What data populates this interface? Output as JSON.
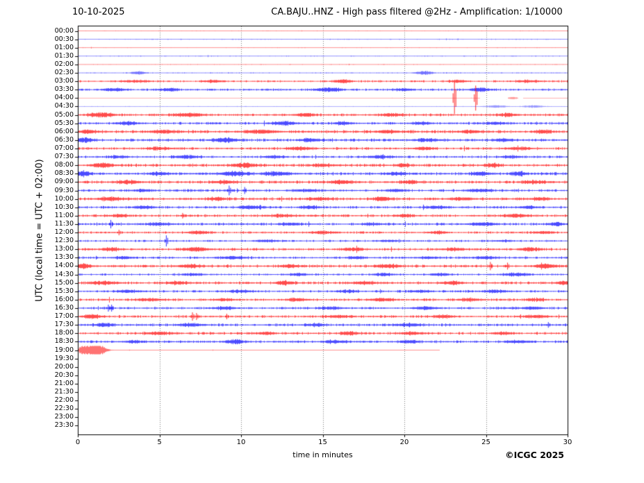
{
  "header": {
    "date": "10-10-2025",
    "title": "CA.BAJU..HNZ - High pass filtered @2Hz - Amplification: 1/10000"
  },
  "footer": {
    "xlabel": "time in minutes",
    "copyright": "©ICGC 2025"
  },
  "chart_data": {
    "type": "line",
    "kind": "helicorder-dayplot",
    "station": "CA.BAJU..HNZ",
    "filter": "High pass filtered @2Hz",
    "amplification": "1/10000",
    "date": "10-10-2025",
    "ylabel": "UTC (local time = UTC + 02:00)",
    "xlabel": "time in minutes",
    "xlim": [
      0,
      30
    ],
    "x_ticks": [
      0,
      5,
      10,
      15,
      20,
      25,
      30
    ],
    "grid_minutes": [
      5,
      10,
      15,
      20,
      25
    ],
    "grid": "dotted-vertical",
    "colors": {
      "red": "#ff0000",
      "blue": "#0000ff",
      "grid": "#777777",
      "axis": "#000000",
      "text": "#000000"
    },
    "minutes_per_row": 30,
    "last_trace_row": "19:00",
    "last_trace_end_minute": 22.15,
    "rows": [
      {
        "label": "00:00",
        "color": "red",
        "amp": 0.35,
        "bursts": []
      },
      {
        "label": "00:30",
        "color": "blue",
        "amp": 0.45,
        "bursts": []
      },
      {
        "label": "01:00",
        "color": "red",
        "amp": 0.35,
        "bursts": []
      },
      {
        "label": "01:30",
        "color": "blue",
        "amp": 0.5,
        "bursts": []
      },
      {
        "label": "02:00",
        "color": "red",
        "amp": 0.4,
        "bursts": []
      },
      {
        "label": "02:30",
        "color": "blue",
        "amp": 0.55,
        "bursts": [
          [
            3.7,
            0.3,
            1.2
          ],
          [
            21.2,
            0.35,
            1.5
          ]
        ]
      },
      {
        "label": "03:00",
        "color": "red",
        "amp": 1.0,
        "bursts": [
          [
            3.5,
            0.6,
            0.7
          ],
          [
            8.2,
            0.4,
            0.9
          ],
          [
            16.2,
            0.35,
            1.3
          ],
          [
            23.3,
            0.4,
            0.8
          ],
          [
            27.5,
            0.5,
            0.7
          ]
        ]
      },
      {
        "label": "03:30",
        "color": "blue",
        "amp": 1.1,
        "bursts": [
          [
            2.2,
            0.5,
            0.9
          ],
          [
            5.6,
            0.3,
            1.2
          ],
          [
            15.3,
            0.5,
            1.5
          ],
          [
            20.0,
            0.4,
            0.8
          ],
          [
            24.6,
            0.4,
            1.3
          ]
        ]
      },
      {
        "label": "04:00",
        "color": "red",
        "amp": 0.28,
        "faint": true,
        "spikes": [
          [
            23.05,
            23
          ],
          [
            24.35,
            18
          ]
        ],
        "gaps": [
          [
            24.6,
            26.3
          ],
          [
            26.95,
            27.25
          ]
        ],
        "bursts": [
          [
            26.6,
            0.22,
            0.9
          ]
        ]
      },
      {
        "label": "04:30",
        "color": "blue",
        "amp": 0.4,
        "faint": true,
        "bursts": [
          [
            25.6,
            0.5,
            0.9
          ],
          [
            27.9,
            0.4,
            1.0
          ]
        ]
      },
      {
        "label": "05:00",
        "color": "red",
        "amp": 1.3,
        "bursts": [
          [
            1.4,
            0.5,
            1.5
          ],
          [
            6.8,
            0.6,
            1.3
          ],
          [
            13.9,
            0.4,
            1.1
          ],
          [
            19.2,
            0.5,
            0.9
          ],
          [
            26.3,
            0.4,
            1.0
          ]
        ]
      },
      {
        "label": "05:30",
        "color": "blue",
        "amp": 1.2,
        "bursts": [
          [
            3.1,
            0.4,
            1.1
          ],
          [
            12.6,
            0.5,
            1.3
          ],
          [
            16.2,
            0.3,
            1.0
          ],
          [
            21.0,
            0.4,
            0.8
          ],
          [
            25.5,
            0.4,
            0.9
          ]
        ]
      },
      {
        "label": "06:00",
        "color": "red",
        "amp": 1.5,
        "bursts": [
          [
            0.6,
            0.4,
            1.2
          ],
          [
            5.3,
            0.5,
            1.0
          ],
          [
            11.2,
            0.6,
            1.4
          ],
          [
            19.0,
            0.4,
            1.1
          ],
          [
            24.0,
            0.5,
            0.9
          ],
          [
            28.5,
            0.4,
            1.0
          ]
        ]
      },
      {
        "label": "06:30",
        "color": "blue",
        "amp": 1.4,
        "bursts": [
          [
            0.4,
            0.4,
            1.5
          ],
          [
            9.0,
            0.5,
            1.6
          ],
          [
            14.2,
            0.4,
            1.1
          ],
          [
            21.5,
            0.5,
            0.9
          ],
          [
            26.0,
            0.4,
            0.8
          ]
        ]
      },
      {
        "label": "07:00",
        "color": "red",
        "amp": 1.25,
        "bursts": [
          [
            5.0,
            0.5,
            0.9
          ],
          [
            13.6,
            0.5,
            1.2
          ],
          [
            21.2,
            0.4,
            1.0
          ],
          [
            27.0,
            0.5,
            0.8
          ]
        ]
      },
      {
        "label": "07:30",
        "color": "blue",
        "amp": 1.2,
        "bursts": [
          [
            2.5,
            0.4,
            0.8
          ],
          [
            6.6,
            0.5,
            1.1
          ],
          [
            12.0,
            0.4,
            0.9
          ],
          [
            18.5,
            0.5,
            1.0
          ],
          [
            26.5,
            0.4,
            0.8
          ]
        ]
      },
      {
        "label": "08:00",
        "color": "red",
        "amp": 1.5,
        "bursts": [
          [
            1.5,
            0.4,
            1.7
          ],
          [
            10.1,
            0.5,
            1.4
          ],
          [
            15.0,
            0.4,
            0.9
          ],
          [
            19.9,
            0.25,
            1.5
          ],
          [
            25.4,
            0.3,
            1.3
          ]
        ]
      },
      {
        "label": "08:30",
        "color": "blue",
        "amp": 1.5,
        "bursts": [
          [
            0.3,
            0.3,
            1.9
          ],
          [
            5.0,
            0.4,
            0.9
          ],
          [
            9.6,
            0.6,
            1.4
          ],
          [
            12.2,
            0.5,
            1.3
          ],
          [
            19.5,
            0.4,
            0.9
          ],
          [
            24.6,
            0.4,
            1.1
          ],
          [
            27.0,
            0.3,
            1.4
          ]
        ]
      },
      {
        "label": "09:00",
        "color": "red",
        "amp": 1.4,
        "bursts": [
          [
            3.1,
            0.5,
            1.1
          ],
          [
            9.0,
            0.4,
            1.0
          ],
          [
            16.1,
            0.5,
            1.2
          ],
          [
            20.3,
            0.4,
            1.1
          ],
          [
            28.0,
            0.5,
            0.9
          ]
        ]
      },
      {
        "label": "09:30",
        "color": "blue",
        "amp": 1.25,
        "spikes": [
          [
            9.25,
            7
          ],
          [
            10.2,
            5
          ]
        ],
        "bursts": [
          [
            4.0,
            0.4,
            0.8
          ],
          [
            14.0,
            0.5,
            0.9
          ],
          [
            19.5,
            0.4,
            0.8
          ],
          [
            24.6,
            0.5,
            1.1
          ]
        ]
      },
      {
        "label": "10:00",
        "color": "red",
        "amp": 1.4,
        "bursts": [
          [
            2.0,
            0.5,
            1.2
          ],
          [
            8.5,
            0.4,
            1.0
          ],
          [
            14.8,
            0.5,
            0.9
          ],
          [
            18.6,
            0.4,
            1.3
          ],
          [
            23.5,
            0.5,
            0.9
          ],
          [
            28.3,
            0.4,
            0.9
          ]
        ]
      },
      {
        "label": "10:30",
        "color": "blue",
        "amp": 1.2,
        "bursts": [
          [
            4.0,
            0.4,
            0.9
          ],
          [
            10.6,
            0.5,
            1.1
          ],
          [
            14.2,
            0.4,
            1.0
          ],
          [
            22.0,
            0.5,
            0.8
          ],
          [
            27.5,
            0.4,
            0.8
          ]
        ]
      },
      {
        "label": "11:00",
        "color": "red",
        "amp": 1.25,
        "spikes": [
          [
            6.4,
            4
          ]
        ],
        "bursts": [
          [
            2.5,
            0.4,
            1.0
          ],
          [
            12.5,
            0.5,
            0.9
          ],
          [
            20.0,
            0.4,
            0.9
          ],
          [
            26.8,
            0.5,
            1.1
          ]
        ]
      },
      {
        "label": "11:30",
        "color": "blue",
        "amp": 1.25,
        "spikes": [
          [
            2.0,
            6
          ]
        ],
        "bursts": [
          [
            5.0,
            0.5,
            0.9
          ],
          [
            13.0,
            0.4,
            0.9
          ],
          [
            18.0,
            0.4,
            0.8
          ],
          [
            24.8,
            0.5,
            1.2
          ],
          [
            29.3,
            0.3,
            1.3
          ]
        ]
      },
      {
        "label": "12:00",
        "color": "red",
        "amp": 1.15,
        "spikes": [
          [
            2.5,
            4
          ]
        ],
        "bursts": [
          [
            7.4,
            0.4,
            1.2
          ],
          [
            15.0,
            0.5,
            0.9
          ],
          [
            22.0,
            0.4,
            0.8
          ],
          [
            28.5,
            0.4,
            0.9
          ]
        ]
      },
      {
        "label": "12:30",
        "color": "blue",
        "amp": 0.95,
        "spikes": [
          [
            5.4,
            8
          ]
        ],
        "bursts": [
          [
            11.5,
            0.5,
            0.7
          ],
          [
            19.0,
            0.4,
            0.7
          ],
          [
            26.0,
            0.4,
            0.6
          ]
        ]
      },
      {
        "label": "13:00",
        "color": "red",
        "amp": 1.3,
        "bursts": [
          [
            2.0,
            0.4,
            1.1
          ],
          [
            7.2,
            0.5,
            1.4
          ],
          [
            16.8,
            0.4,
            1.1
          ],
          [
            23.0,
            0.5,
            0.9
          ],
          [
            27.7,
            0.4,
            1.2
          ]
        ]
      },
      {
        "label": "13:30",
        "color": "blue",
        "amp": 1.15,
        "bursts": [
          [
            2.8,
            0.4,
            0.9
          ],
          [
            9.5,
            0.5,
            1.0
          ],
          [
            17.0,
            0.4,
            0.8
          ],
          [
            21.5,
            0.4,
            0.7
          ],
          [
            25.0,
            0.5,
            0.8
          ]
        ]
      },
      {
        "label": "14:00",
        "color": "red",
        "amp": 1.4,
        "spikes": [
          [
            25.25,
            6
          ],
          [
            26.3,
            5
          ]
        ],
        "bursts": [
          [
            0.3,
            0.3,
            1.7
          ],
          [
            6.8,
            0.5,
            1.1
          ],
          [
            13.0,
            0.4,
            1.0
          ],
          [
            19.0,
            0.5,
            1.1
          ],
          [
            28.6,
            0.4,
            1.5
          ]
        ]
      },
      {
        "label": "14:30",
        "color": "blue",
        "amp": 0.95,
        "bursts": [
          [
            7.0,
            0.5,
            0.7
          ],
          [
            13.5,
            0.4,
            0.9
          ],
          [
            18.7,
            0.4,
            1.0
          ],
          [
            22.2,
            0.4,
            1.1
          ],
          [
            26.8,
            0.6,
            1.1
          ]
        ]
      },
      {
        "label": "15:00",
        "color": "red",
        "amp": 1.3,
        "bursts": [
          [
            1.6,
            0.5,
            1.1
          ],
          [
            6.0,
            0.4,
            1.0
          ],
          [
            12.7,
            0.4,
            1.2
          ],
          [
            17.5,
            0.5,
            1.0
          ],
          [
            22.9,
            0.4,
            1.2
          ],
          [
            29.7,
            0.3,
            1.3
          ]
        ]
      },
      {
        "label": "15:30",
        "color": "blue",
        "amp": 1.15,
        "bursts": [
          [
            3.0,
            0.4,
            1.0
          ],
          [
            10.0,
            0.5,
            0.8
          ],
          [
            16.5,
            0.4,
            0.9
          ],
          [
            21.0,
            0.4,
            0.8
          ],
          [
            25.6,
            0.5,
            1.0
          ]
        ]
      },
      {
        "label": "16:00",
        "color": "red",
        "amp": 1.25,
        "bursts": [
          [
            4.5,
            0.5,
            0.9
          ],
          [
            9.0,
            0.4,
            0.8
          ],
          [
            13.4,
            0.4,
            1.1
          ],
          [
            18.6,
            0.5,
            1.0
          ],
          [
            24.0,
            0.4,
            0.9
          ],
          [
            28.0,
            0.4,
            0.8
          ]
        ]
      },
      {
        "label": "16:30",
        "color": "blue",
        "amp": 1.15,
        "spikes": [
          [
            1.85,
            5
          ],
          [
            2.05,
            5
          ]
        ],
        "bursts": [
          [
            9.0,
            0.5,
            0.8
          ],
          [
            15.5,
            0.4,
            0.9
          ],
          [
            21.3,
            0.5,
            0.9
          ],
          [
            27.8,
            0.4,
            1.0
          ]
        ]
      },
      {
        "label": "17:00",
        "color": "red",
        "amp": 1.25,
        "spikes": [
          [
            7.0,
            6
          ],
          [
            7.25,
            5
          ],
          [
            9.1,
            4
          ]
        ],
        "bursts": [
          [
            0.9,
            0.4,
            1.3
          ],
          [
            16.0,
            0.5,
            0.9
          ],
          [
            22.4,
            0.4,
            1.1
          ],
          [
            28.0,
            0.5,
            0.9
          ]
        ]
      },
      {
        "label": "17:30",
        "color": "blue",
        "amp": 1.3,
        "spikes": [
          [
            28.8,
            4
          ]
        ],
        "bursts": [
          [
            1.6,
            0.4,
            1.1
          ],
          [
            7.0,
            0.5,
            1.0
          ],
          [
            14.5,
            0.4,
            0.9
          ],
          [
            20.2,
            0.5,
            1.1
          ]
        ]
      },
      {
        "label": "18:00",
        "color": "red",
        "amp": 1.25,
        "bursts": [
          [
            5.0,
            0.5,
            1.0
          ],
          [
            11.5,
            0.4,
            0.9
          ],
          [
            16.6,
            0.4,
            1.1
          ],
          [
            20.4,
            0.5,
            1.0
          ],
          [
            26.0,
            0.4,
            0.9
          ]
        ]
      },
      {
        "label": "18:30",
        "color": "blue",
        "amp": 1.25,
        "bursts": [
          [
            3.5,
            0.4,
            0.9
          ],
          [
            9.6,
            0.4,
            1.5
          ],
          [
            15.8,
            0.5,
            1.0
          ],
          [
            20.3,
            0.4,
            1.1
          ],
          [
            27.0,
            0.5,
            0.9
          ]
        ]
      },
      {
        "label": "19:00",
        "color": "red",
        "amp": 0.25,
        "end": 22.15,
        "bursts": [
          [
            0.7,
            0.5,
            5.0
          ],
          [
            1.3,
            0.3,
            3.0
          ]
        ]
      },
      {
        "label": "19:30",
        "color": "blue",
        "amp": 0
      },
      {
        "label": "20:00",
        "color": "red",
        "amp": 0
      },
      {
        "label": "20:30",
        "color": "blue",
        "amp": 0
      },
      {
        "label": "21:00",
        "color": "red",
        "amp": 0
      },
      {
        "label": "21:30",
        "color": "blue",
        "amp": 0
      },
      {
        "label": "22:00",
        "color": "red",
        "amp": 0
      },
      {
        "label": "22:30",
        "color": "blue",
        "amp": 0
      },
      {
        "label": "23:00",
        "color": "red",
        "amp": 0
      },
      {
        "label": "23:30",
        "color": "blue",
        "amp": 0
      }
    ]
  }
}
